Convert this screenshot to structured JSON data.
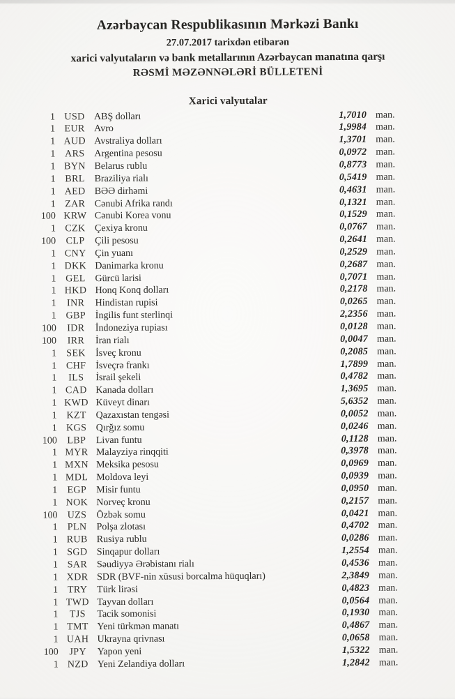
{
  "header": {
    "title": "Azərbaycan Respublikasının Mərkəzi Bankı",
    "date_line": "27.07.2017 tarixdən etibarən",
    "subject_line": "xarici valyutaların və bank metallarının Azərbaycan manatına qarşı",
    "bulletin_line": "RƏSMİ MƏZƏNNƏLƏRİ BÜLLETENİ"
  },
  "section_title": "Xarici valyutalar",
  "unit_suffix": "man.",
  "colors": {
    "page_bg": "#f7f6f3",
    "text": "#2b2a27"
  },
  "rates": [
    {
      "qty": "1",
      "code": "USD",
      "name": "ABŞ dolları",
      "rate": "1,7010"
    },
    {
      "qty": "1",
      "code": "EUR",
      "name": "Avro",
      "rate": "1,9984"
    },
    {
      "qty": "1",
      "code": "AUD",
      "name": "Avstraliya dolları",
      "rate": "1,3701"
    },
    {
      "qty": "1",
      "code": "ARS",
      "name": "Argentina pesosu",
      "rate": "0,0972"
    },
    {
      "qty": "1",
      "code": "BYN",
      "name": "Belarus rublu",
      "rate": "0,8773"
    },
    {
      "qty": "1",
      "code": "BRL",
      "name": "Braziliya rialı",
      "rate": "0,5419"
    },
    {
      "qty": "1",
      "code": "AED",
      "name": "BƏƏ dirhəmi",
      "rate": "0,4631"
    },
    {
      "qty": "1",
      "code": "ZAR",
      "name": "Cənubi Afrika randı",
      "rate": "0,1321"
    },
    {
      "qty": "100",
      "code": "KRW",
      "name": "Cənubi Korea vonu",
      "rate": "0,1529"
    },
    {
      "qty": "1",
      "code": "CZK",
      "name": "Çexiya kronu",
      "rate": "0,0767"
    },
    {
      "qty": "100",
      "code": "CLP",
      "name": "Çili pesosu",
      "rate": "0,2641"
    },
    {
      "qty": "1",
      "code": "CNY",
      "name": "Çin yuanı",
      "rate": "0,2529"
    },
    {
      "qty": "1",
      "code": "DKK",
      "name": "Danimarka kronu",
      "rate": "0,2687"
    },
    {
      "qty": "1",
      "code": "GEL",
      "name": "Gürcü larisi",
      "rate": "0,7071"
    },
    {
      "qty": "1",
      "code": "HKD",
      "name": "Honq Konq dolları",
      "rate": "0,2178"
    },
    {
      "qty": "1",
      "code": "INR",
      "name": "Hindistan rupisi",
      "rate": "0,0265"
    },
    {
      "qty": "1",
      "code": "GBP",
      "name": "İngilis funt sterlinqi",
      "rate": "2,2356"
    },
    {
      "qty": "100",
      "code": "IDR",
      "name": "İndoneziya rupiası",
      "rate": "0,0128"
    },
    {
      "qty": "100",
      "code": "IRR",
      "name": "İran rialı",
      "rate": "0,0047"
    },
    {
      "qty": "1",
      "code": "SEK",
      "name": "İsveç kronu",
      "rate": "0,2085"
    },
    {
      "qty": "1",
      "code": "CHF",
      "name": "İsveçrə frankı",
      "rate": "1,7899"
    },
    {
      "qty": "1",
      "code": "ILS",
      "name": "İsrail şekeli",
      "rate": "0,4782"
    },
    {
      "qty": "1",
      "code": "CAD",
      "name": "Kanada dolları",
      "rate": "1,3695"
    },
    {
      "qty": "1",
      "code": "KWD",
      "name": "Küveyt dinarı",
      "rate": "5,6352"
    },
    {
      "qty": "1",
      "code": "KZT",
      "name": "Qazaxıstan tengəsi",
      "rate": "0,0052"
    },
    {
      "qty": "1",
      "code": "KGS",
      "name": "Qırğız somu",
      "rate": "0,0246"
    },
    {
      "qty": "100",
      "code": "LBP",
      "name": "Livan funtu",
      "rate": "0,1128"
    },
    {
      "qty": "1",
      "code": "MYR",
      "name": "Malayziya rinqqiti",
      "rate": "0,3978"
    },
    {
      "qty": "1",
      "code": "MXN",
      "name": "Meksika pesosu",
      "rate": "0,0969"
    },
    {
      "qty": "1",
      "code": "MDL",
      "name": "Moldova leyi",
      "rate": "0,0939"
    },
    {
      "qty": "1",
      "code": "EGP",
      "name": "Misir funtu",
      "rate": "0,0950"
    },
    {
      "qty": "1",
      "code": "NOK",
      "name": "Norveç kronu",
      "rate": "0,2157"
    },
    {
      "qty": "100",
      "code": "UZS",
      "name": "Özbək somu",
      "rate": "0,0421"
    },
    {
      "qty": "1",
      "code": "PLN",
      "name": "Polşa zlotası",
      "rate": "0,4702"
    },
    {
      "qty": "1",
      "code": "RUB",
      "name": "Rusiya rublu",
      "rate": "0,0286"
    },
    {
      "qty": "1",
      "code": "SGD",
      "name": "Sinqapur dolları",
      "rate": "1,2554"
    },
    {
      "qty": "1",
      "code": "SAR",
      "name": "Səudiyyə Ərəbistanı rialı",
      "rate": "0,4536"
    },
    {
      "qty": "1",
      "code": "XDR",
      "name": "SDR (BVF-nin xüsusi borcalma hüquqları)",
      "rate": "2,3849"
    },
    {
      "qty": "1",
      "code": "TRY",
      "name": "Türk lirəsi",
      "rate": "0,4823"
    },
    {
      "qty": "1",
      "code": "TWD",
      "name": "Tayvan dolları",
      "rate": "0,0564"
    },
    {
      "qty": "1",
      "code": "TJS",
      "name": "Tacik somonisi",
      "rate": "0,1930"
    },
    {
      "qty": "1",
      "code": "TMT",
      "name": "Yeni türkmən manatı",
      "rate": "0,4867"
    },
    {
      "qty": "1",
      "code": "UAH",
      "name": "Ukrayna qrivnası",
      "rate": "0,0658"
    },
    {
      "qty": "100",
      "code": "JPY",
      "name": "Yapon yeni",
      "rate": "1,5322"
    },
    {
      "qty": "1",
      "code": "NZD",
      "name": "Yeni Zelandiya dolları",
      "rate": "1,2842"
    }
  ]
}
